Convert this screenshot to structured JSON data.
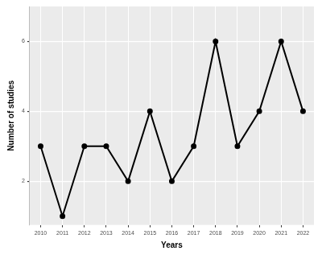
{
  "chart_data": {
    "type": "line",
    "x_label": "Years",
    "y_label": "Number of studies",
    "categories": [
      "2010",
      "2011",
      "2012",
      "2013",
      "2014",
      "2015",
      "2016",
      "2017",
      "2018",
      "2019",
      "2020",
      "2021",
      "2022"
    ],
    "values": [
      3,
      1,
      3,
      3,
      2,
      4,
      2,
      3,
      6,
      3,
      4,
      6,
      4
    ],
    "color": "#000000",
    "marker": "circle",
    "line_style": "solid",
    "ylim": [
      0.75,
      7
    ],
    "yticks": [
      2,
      4,
      6
    ],
    "grid": true
  }
}
